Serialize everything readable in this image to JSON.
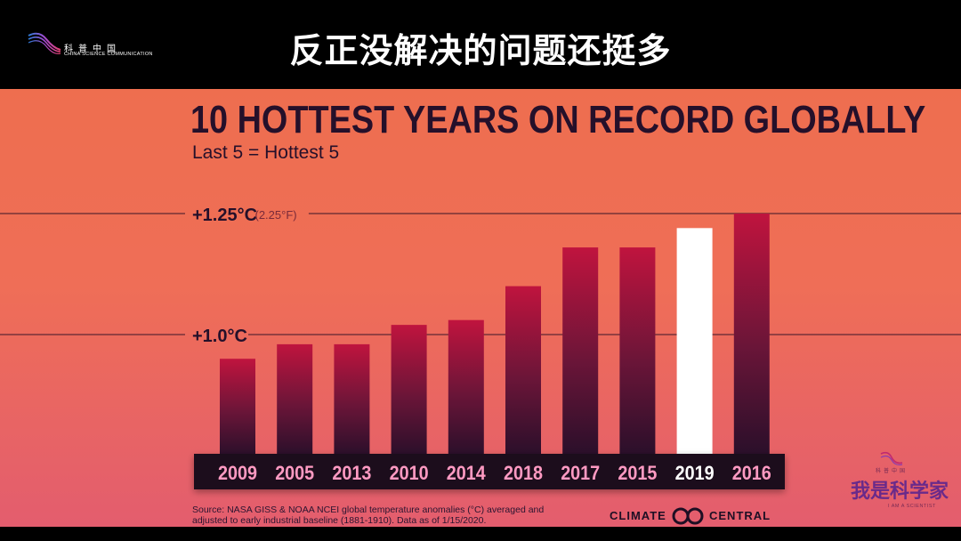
{
  "banner": {
    "title": "反正没解决的问题还挺多",
    "logo_cn": "科普中国",
    "logo_en": "CHINA SCIENCE COMMUNICATION"
  },
  "chart_data": {
    "type": "bar",
    "title": "10 HOTTEST YEARS ON RECORD GLOBALLY",
    "subtitle": "Last 5 = Hottest 5",
    "categories": [
      "2009",
      "2005",
      "2013",
      "2010",
      "2014",
      "2018",
      "2017",
      "2015",
      "2019",
      "2016"
    ],
    "values": [
      0.95,
      0.98,
      0.98,
      1.02,
      1.03,
      1.1,
      1.18,
      1.18,
      1.22,
      1.25
    ],
    "highlight_category": "2019",
    "reference_lines": [
      {
        "value": 1.25,
        "label": "+1.25°C",
        "sublabel": "(2.25°F)"
      },
      {
        "value": 1.0,
        "label": "+1.0°C",
        "sublabel": ""
      }
    ],
    "ylim": [
      0.8,
      1.25
    ],
    "grid": false,
    "legend": "none"
  },
  "source": "Source: NASA GISS & NOAA NCEI global temperature anomalies (°C) averaged and adjusted to early industrial baseline (1881-1910). Data as of 1/15/2020.",
  "brand": {
    "left": "CLIMATE",
    "right": "CENTRAL"
  },
  "watermark": {
    "cn_small": "科普中国",
    "cn": "我是科学家",
    "en": "I AM A SCIENTIST"
  },
  "colors": {
    "bar_top": "#c0143e",
    "bar_bottom": "#2a0f2a",
    "highlight": "#ffffff",
    "label_text": "#ff9ac2",
    "title_text": "#25102a"
  }
}
